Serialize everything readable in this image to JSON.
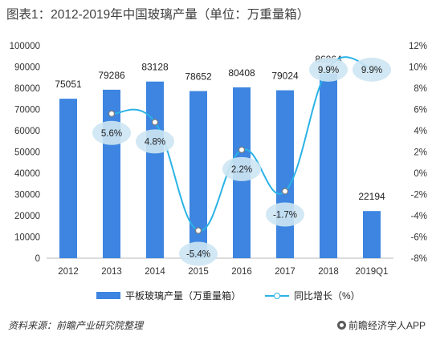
{
  "title": "图表1：2012-2019年中国玻璃产量（单位：万重量箱）",
  "chart_data": {
    "type": "bar",
    "categories": [
      "2012",
      "2013",
      "2014",
      "2015",
      "2016",
      "2017",
      "2018",
      "2019Q1"
    ],
    "series": [
      {
        "name": "平板玻璃产量（万重量箱）",
        "type": "bar",
        "axis": "left",
        "color": "#3d85e0",
        "values": [
          75051,
          79286,
          83128,
          78652,
          80408,
          79024,
          86864,
          22194
        ]
      },
      {
        "name": "同比增长（%）",
        "type": "line",
        "axis": "right",
        "color": "#2bb3e6",
        "values": [
          null,
          5.6,
          4.8,
          -5.4,
          2.2,
          -1.7,
          9.9,
          9.9
        ],
        "labels": [
          "",
          "5.6%",
          "4.8%",
          "-5.4%",
          "2.2%",
          "-1.7%",
          "9.9%",
          "9.9%"
        ]
      }
    ],
    "y_left": {
      "min": 0,
      "max": 100000,
      "ticks": [
        "0",
        "10000",
        "20000",
        "30000",
        "40000",
        "50000",
        "60000",
        "70000",
        "80000",
        "90000",
        "100000"
      ]
    },
    "y_right": {
      "min": -8,
      "max": 12,
      "ticks": [
        "-8%",
        "-6%",
        "-4%",
        "-2%",
        "0%",
        "2%",
        "4%",
        "6%",
        "8%",
        "10%",
        "12%"
      ]
    },
    "grid": false,
    "legend_position": "bottom"
  },
  "source": "资料来源：前瞻产业研究院整理",
  "brand": "前瞻经济学人APP"
}
